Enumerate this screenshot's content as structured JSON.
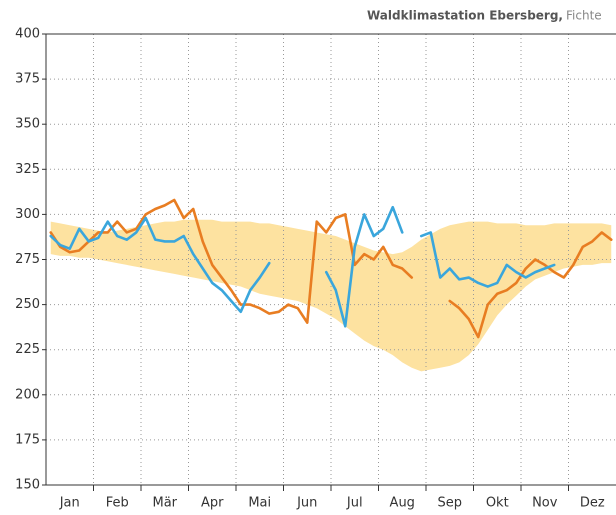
{
  "chart_data": {
    "type": "line",
    "title": "Waldklimastation Ebersberg,",
    "subtitle": "Fichte",
    "categories": [
      null,
      null,
      "Jan",
      null,
      null,
      null,
      null,
      "Feb",
      null,
      null,
      null,
      null,
      "Mär",
      null,
      null,
      null,
      null,
      "Apr",
      null,
      null,
      null,
      null,
      "Mai",
      null,
      null,
      null,
      null,
      "Jun",
      null,
      null,
      null,
      null,
      "Jul",
      null,
      null,
      null,
      null,
      "Aug",
      null,
      null,
      null,
      null,
      "Sep",
      null,
      null,
      null,
      null,
      "Okt",
      null,
      null,
      null,
      null,
      "Nov",
      null,
      null,
      null,
      null,
      "Dez",
      null,
      null
    ],
    "ylim": [
      150,
      400
    ],
    "yticks": [
      150,
      175,
      200,
      225,
      250,
      275,
      300,
      325,
      350,
      375,
      400
    ],
    "grid": true,
    "band": {
      "color": "#fde2a0",
      "upper": [
        296,
        295,
        294,
        293,
        292,
        291,
        290,
        291,
        292,
        293,
        294,
        295,
        296,
        296,
        297,
        297,
        297,
        297,
        296,
        296,
        296,
        296,
        295,
        295,
        294,
        293,
        292,
        291,
        290,
        289,
        288,
        286,
        284,
        282,
        280,
        279,
        278,
        279,
        282,
        286,
        289,
        292,
        294,
        295,
        296,
        296,
        296,
        295,
        295,
        295,
        294,
        294,
        294,
        295,
        295,
        295,
        295,
        295,
        295,
        294
      ],
      "lower": [
        278,
        277,
        277,
        276,
        276,
        275,
        274,
        273,
        272,
        271,
        270,
        269,
        268,
        267,
        266,
        265,
        264,
        263,
        262,
        261,
        260,
        258,
        256,
        255,
        254,
        253,
        252,
        250,
        248,
        245,
        242,
        238,
        234,
        230,
        227,
        225,
        222,
        218,
        215,
        213,
        214,
        215,
        216,
        218,
        222,
        228,
        236,
        244,
        250,
        255,
        260,
        264,
        266,
        268,
        270,
        271,
        272,
        272,
        273,
        273
      ]
    },
    "series": [
      {
        "color": "#e87d22",
        "values": [
          290,
          282,
          279,
          280,
          285,
          290,
          290,
          296,
          290,
          292,
          300,
          303,
          305,
          308,
          298,
          303,
          285,
          272,
          265,
          258,
          250,
          250,
          248,
          245,
          246,
          250,
          248,
          240,
          296,
          290,
          298,
          300,
          272,
          278,
          275,
          282,
          272,
          270,
          265,
          null,
          null,
          null,
          252,
          248,
          242,
          232,
          250,
          256,
          258,
          262,
          270,
          275,
          272,
          268,
          265,
          272,
          282,
          285,
          290,
          286
        ]
      },
      {
        "color": "#3aa6dc",
        "values": [
          288,
          283,
          281,
          292,
          285,
          287,
          296,
          288,
          286,
          290,
          298,
          286,
          285,
          285,
          288,
          278,
          270,
          262,
          258,
          252,
          246,
          258,
          265,
          273,
          null,
          null,
          null,
          null,
          null,
          268,
          258,
          238,
          282,
          300,
          288,
          292,
          304,
          290,
          null,
          288,
          290,
          265,
          270,
          264,
          265,
          262,
          260,
          262,
          272,
          268,
          265,
          268,
          270,
          272,
          null,
          null,
          null,
          null,
          null,
          null
        ]
      }
    ]
  }
}
